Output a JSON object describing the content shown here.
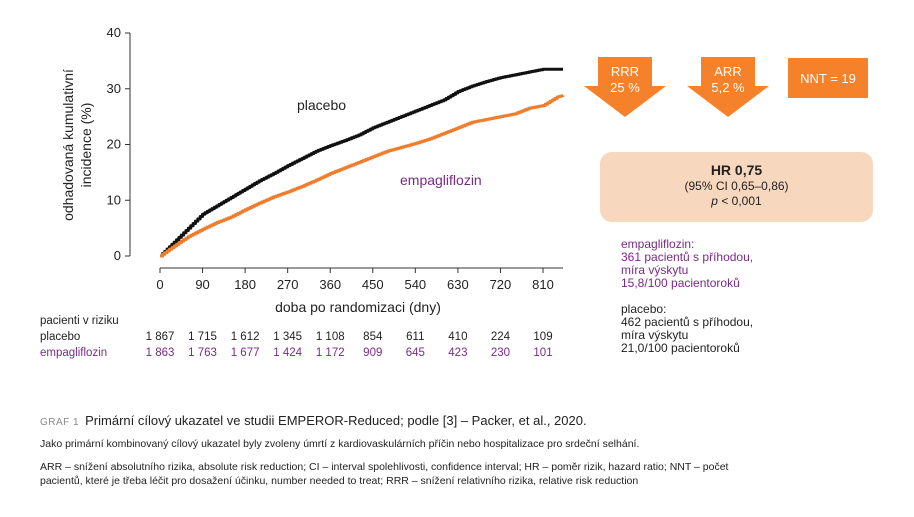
{
  "chart_data": {
    "type": "line",
    "ylabel_lines": [
      "odhadovaná kumulativní",
      "incidence (%)"
    ],
    "xlabel": "doba po randomizaci (dny)",
    "x_ticks": [
      0,
      90,
      180,
      270,
      360,
      450,
      540,
      630,
      720,
      810
    ],
    "y_ticks": [
      0,
      10,
      20,
      30,
      40
    ],
    "xlim": [
      -30,
      900
    ],
    "ylim": [
      0,
      40
    ],
    "grid": false,
    "series": [
      {
        "name": "placebo",
        "color": "#111111",
        "x": [
          0,
          30,
          60,
          90,
          120,
          150,
          180,
          210,
          240,
          270,
          300,
          330,
          360,
          390,
          420,
          450,
          480,
          510,
          540,
          570,
          600,
          630,
          660,
          690,
          720,
          750,
          780,
          810,
          840,
          900
        ],
        "y": [
          0,
          2.5,
          5,
          7.5,
          9,
          10.5,
          12,
          13.5,
          14.8,
          16.2,
          17.5,
          18.8,
          19.8,
          20.7,
          21.7,
          23,
          24,
          25,
          26,
          27,
          28,
          29.5,
          30.5,
          31.3,
          32,
          32.5,
          33,
          33.5,
          33.5,
          33.5
        ]
      },
      {
        "name": "empagliflozin",
        "color": "#ee7d2e",
        "x": [
          0,
          30,
          60,
          90,
          120,
          150,
          180,
          210,
          240,
          270,
          300,
          330,
          360,
          390,
          420,
          450,
          480,
          510,
          540,
          570,
          600,
          630,
          660,
          690,
          720,
          750,
          780,
          810,
          840,
          900
        ],
        "y": [
          0,
          1.8,
          3.5,
          4.8,
          6,
          7,
          8.3,
          9.5,
          10.6,
          11.5,
          12.5,
          13.6,
          14.8,
          15.8,
          16.8,
          17.8,
          18.8,
          19.5,
          20.2,
          21,
          22,
          23,
          24,
          24.5,
          25,
          25.5,
          26.5,
          27,
          28.5,
          28.8
        ]
      }
    ]
  },
  "risk_table": {
    "heading": "pacienti v riziku",
    "rows": [
      {
        "label": "placebo",
        "values": [
          "1 867",
          "1 715",
          "1 612",
          "1 345",
          "1 108",
          "854",
          "611",
          "410",
          "224",
          "109"
        ]
      },
      {
        "label": "empagliflozin",
        "values": [
          "1 863",
          "1 763",
          "1 677",
          "1 424",
          "1 172",
          "909",
          "645",
          "423",
          "230",
          "101"
        ]
      }
    ]
  },
  "annotations": {
    "rrr_line1": "RRR",
    "rrr_line2": "25 %",
    "arr_line1": "ARR",
    "arr_line2": "5,2 %",
    "nnt": "NNT = 19",
    "hr_title": "HR 0,75",
    "hr_ci": "(95% CI 0,65–0,86)",
    "hr_p_italic": "p",
    "hr_p_rest": " < 0,001",
    "empa_stats": [
      "empagliflozin:",
      "361 pacientů s příhodou,",
      "míra výskytu",
      "15,8/100 pacientoroků"
    ],
    "placebo_stats": [
      "placebo:",
      "462 pacientů s příhodou,",
      "míra výskytu",
      "21,0/100 pacientoroků"
    ]
  },
  "caption": {
    "tag": "GRAF 1",
    "title": "Primární cílový ukazatel ve studii EMPEROR-Reduced; podle [3] – Packer, et al., 2020.",
    "line1": "Jako primární kombinovaný cílový ukazatel byly zvoleny úmrtí z kardiovaskulárních příčin nebo hospitalizace pro srdeční selhání.",
    "line2": "ARR – snížení absolutního rizika, absolute risk reduction; CI – interval spolehlivosti, confidence interval; HR – poměr rizik, hazard ratio; NNT – počet",
    "line3": "pacientů, které je třeba léčit pro dosažení účinku, number needed to treat; RRR – snížení relativního rizika, relative risk reduction"
  },
  "colors": {
    "orange": "#f5822a",
    "purple": "#7a2a86",
    "hr_box": "#f7d7bd"
  }
}
